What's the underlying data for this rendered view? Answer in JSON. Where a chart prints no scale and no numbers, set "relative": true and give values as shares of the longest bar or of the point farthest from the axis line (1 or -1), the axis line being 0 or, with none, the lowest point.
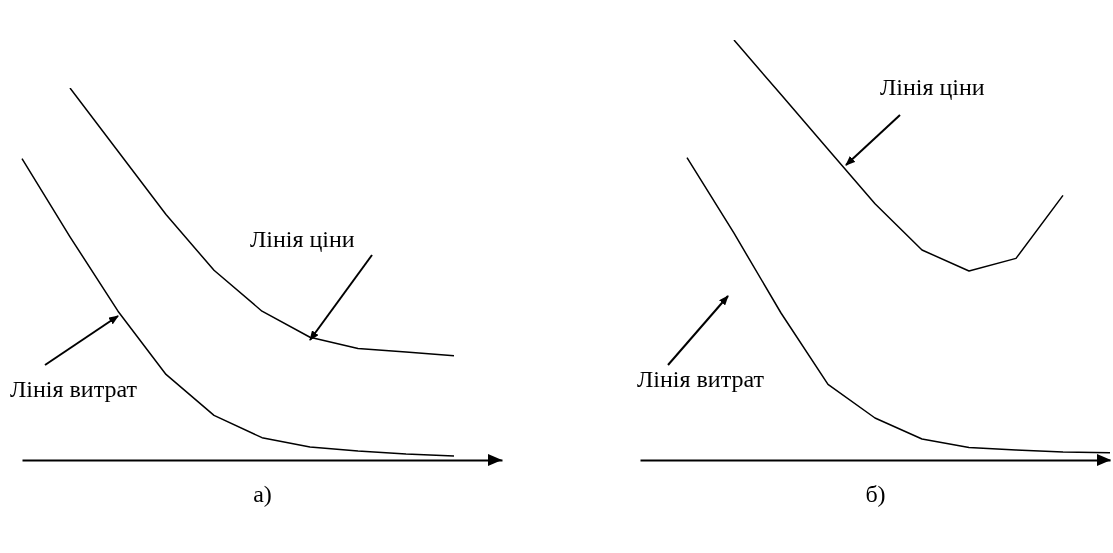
{
  "chart_data": [
    {
      "type": "line",
      "relative": true,
      "tick_labels": false,
      "xlabel": "а)",
      "categories": [
        null,
        null,
        null,
        null,
        null,
        null,
        null,
        null,
        null,
        null,
        null
      ],
      "series": [
        {
          "color": "#000000",
          "values": [
            null,
            1,
            0.83,
            0.66,
            0.51,
            0.4,
            0.33,
            0.3,
            0.29,
            0.28,
            null
          ]
        },
        {
          "color": "#000000",
          "values": [
            0.81,
            0.6,
            0.4,
            0.23,
            0.12,
            0.06,
            0.035,
            0.024,
            0.016,
            0.011,
            null
          ]
        }
      ],
      "annotations": [
        "Лінія ціни",
        "Лінія витрат"
      ]
    },
    {
      "type": "line",
      "relative": true,
      "tick_labels": false,
      "xlabel": "б)",
      "categories": [
        null,
        null,
        null,
        null,
        null,
        null,
        null,
        null,
        null,
        null,
        null
      ],
      "series": [
        {
          "color": "#000000",
          "values": [
            null,
            null,
            1,
            0.87,
            0.74,
            0.61,
            0.5,
            0.45,
            0.48,
            0.63,
            null
          ]
        },
        {
          "color": "#000000",
          "values": [
            null,
            0.72,
            0.54,
            0.35,
            0.18,
            0.1,
            0.05,
            0.03,
            0.024,
            0.019,
            0.017
          ]
        }
      ],
      "annotations": [
        "Лінія ціни",
        "Лінія витрат"
      ]
    }
  ]
}
